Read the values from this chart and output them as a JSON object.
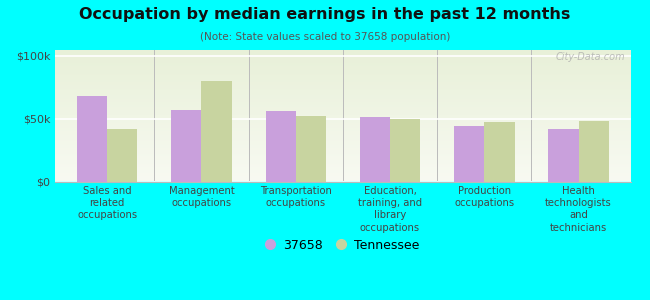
{
  "title": "Occupation by median earnings in the past 12 months",
  "subtitle": "(Note: State values scaled to 37658 population)",
  "categories": [
    "Sales and\nrelated\noccupations",
    "Management\noccupations",
    "Transportation\noccupations",
    "Education,\ntraining, and\nlibrary\noccupations",
    "Production\noccupations",
    "Health\ntechnologists\nand\ntechnicians"
  ],
  "values_37658": [
    68000,
    57000,
    56000,
    51000,
    44000,
    42000
  ],
  "values_tennessee": [
    42000,
    80000,
    52000,
    50000,
    47000,
    48000
  ],
  "bar_color_37658": "#c9a0dc",
  "bar_color_tennessee": "#c8d4a0",
  "background_color": "#00ffff",
  "plot_bg_top": "#e8f0d8",
  "plot_bg_bottom": "#f8faf2",
  "ylabel_ticks": [
    "$0",
    "$50k",
    "$100k"
  ],
  "ytick_values": [
    0,
    50000,
    100000
  ],
  "ylim": [
    0,
    105000
  ],
  "legend_label_37658": "37658",
  "legend_label_tennessee": "Tennessee",
  "watermark": "City-Data.com"
}
